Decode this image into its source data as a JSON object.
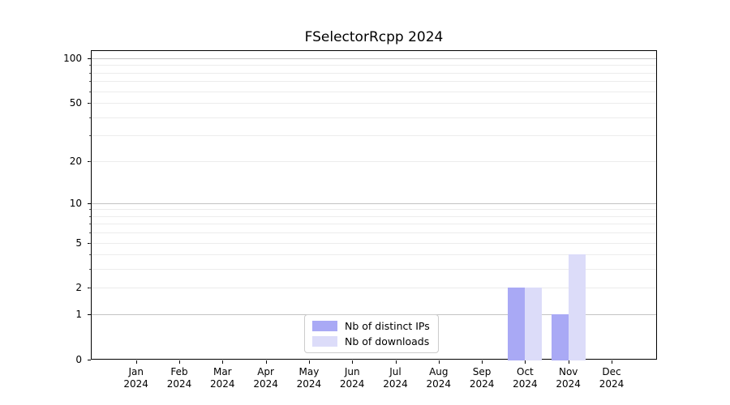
{
  "chart_data": {
    "type": "bar",
    "title": "FSelectorRcpp 2024",
    "categories": [
      {
        "label": "Jan",
        "sublabel": "2024"
      },
      {
        "label": "Feb",
        "sublabel": "2024"
      },
      {
        "label": "Mar",
        "sublabel": "2024"
      },
      {
        "label": "Apr",
        "sublabel": "2024"
      },
      {
        "label": "May",
        "sublabel": "2024"
      },
      {
        "label": "Jun",
        "sublabel": "2024"
      },
      {
        "label": "Jul",
        "sublabel": "2024"
      },
      {
        "label": "Aug",
        "sublabel": "2024"
      },
      {
        "label": "Sep",
        "sublabel": "2024"
      },
      {
        "label": "Oct",
        "sublabel": "2024"
      },
      {
        "label": "Nov",
        "sublabel": "2024"
      },
      {
        "label": "Dec",
        "sublabel": "2024"
      }
    ],
    "series": [
      {
        "name": "Nb of distinct IPs",
        "color": "#a9a9f5",
        "values": [
          0,
          0,
          0,
          0,
          0,
          0,
          0,
          0,
          0,
          2,
          1,
          0
        ]
      },
      {
        "name": "Nb of downloads",
        "color": "#dcdcf9",
        "values": [
          0,
          0,
          0,
          0,
          0,
          0,
          0,
          0,
          0,
          2,
          4,
          0
        ]
      }
    ],
    "xlabel": "",
    "ylabel": "",
    "y_scale": "log1p",
    "ylim": [
      0,
      112
    ],
    "y_tick_labels": [
      "0",
      "1",
      "2",
      "5",
      "10",
      "20",
      "50",
      "100"
    ],
    "y_tick_values": [
      0,
      1,
      2,
      5,
      10,
      20,
      50,
      100
    ],
    "y_decade_gridlines": [
      1,
      10,
      100
    ],
    "y_minor_gridlines": [
      2,
      3,
      4,
      5,
      6,
      7,
      8,
      9,
      20,
      30,
      40,
      50,
      60,
      70,
      80,
      90
    ],
    "grid": "on",
    "legend_position": "bottom-center"
  },
  "colors": {
    "background": "#ffffff",
    "spine": "#000000",
    "text": "#000000",
    "grid_major": "#c3c3c3",
    "grid_minor": "#ececec",
    "legend_border": "#cccccc",
    "series_ips": "#a9a9f5",
    "series_downloads": "#dcdcf9"
  }
}
